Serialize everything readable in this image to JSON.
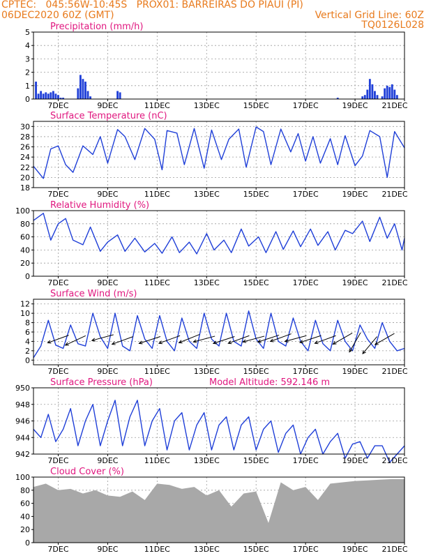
{
  "header": {
    "line1_left": "CPTEC:   045:56W-10:45S   PROX01: BARREIRAS DO PIAUI (PI)",
    "line2_left": "06DEC2020 60Z (GMT)",
    "line2_right": "Vertical Grid Line: 60Z",
    "line3_right": "TQ0126L028"
  },
  "colors": {
    "header": "#e87a1c",
    "title": "#e0177f",
    "series": "#1f3fd8",
    "cloud_fill": "#a8a8a8",
    "grid": "#9a9a9a",
    "axis": "#000000"
  },
  "x_tick_labels": [
    "7DEC",
    "9DEC",
    "11DEC",
    "13DEC",
    "15DEC",
    "17DEC",
    "19DEC",
    "21DEC"
  ],
  "chart_data": [
    {
      "id": "precip",
      "type": "bar",
      "title": "Precipitation (mm/h)",
      "ylim": [
        0,
        5
      ],
      "yticks": [
        0,
        1,
        2,
        3,
        4,
        5
      ],
      "grid": true,
      "x": [
        0.1,
        0.2,
        0.3,
        0.4,
        0.5,
        0.6,
        0.7,
        0.8,
        0.9,
        1.0,
        1.1,
        1.2,
        1.8,
        1.9,
        2.0,
        2.1,
        2.2,
        2.3,
        3.4,
        3.5,
        12.3,
        13.3,
        13.4,
        13.5,
        13.6,
        13.7,
        13.8,
        13.9,
        14.1,
        14.2,
        14.3,
        14.4,
        14.5,
        14.6,
        14.7
      ],
      "values": [
        1.3,
        0.4,
        0.6,
        0.4,
        0.5,
        0.4,
        0.5,
        0.6,
        0.4,
        0.3,
        0.1,
        0.1,
        0.8,
        1.8,
        1.5,
        1.3,
        0.6,
        0.2,
        0.6,
        0.5,
        0.1,
        0.2,
        0.3,
        0.7,
        1.5,
        1.1,
        0.6,
        0.3,
        0.2,
        0.8,
        1.0,
        0.9,
        1.1,
        0.7,
        0.3
      ]
    },
    {
      "id": "temp",
      "type": "line",
      "title": "Surface Temperature (nC)",
      "ylim": [
        18,
        31
      ],
      "yticks": [
        18,
        20,
        22,
        24,
        26,
        28,
        30
      ],
      "grid": true,
      "x": [
        0.0,
        0.4,
        0.7,
        1.0,
        1.3,
        1.6,
        2.0,
        2.4,
        2.7,
        3.0,
        3.4,
        3.7,
        4.1,
        4.5,
        4.9,
        5.2,
        5.4,
        5.8,
        6.1,
        6.5,
        6.9,
        7.2,
        7.6,
        7.9,
        8.3,
        8.6,
        9.0,
        9.3,
        9.6,
        10.0,
        10.4,
        10.7,
        11.0,
        11.3,
        11.6,
        12.0,
        12.3,
        12.6,
        13.0,
        13.3,
        13.6,
        14.0,
        14.3,
        14.6,
        15.0
      ],
      "values": [
        22.2,
        19.8,
        25.6,
        26.2,
        22.5,
        21.0,
        26.2,
        24.5,
        28.0,
        22.8,
        29.4,
        28.0,
        23.5,
        29.6,
        27.5,
        21.5,
        29.2,
        28.7,
        22.5,
        29.6,
        21.8,
        29.3,
        23.5,
        27.5,
        29.5,
        22.0,
        29.9,
        29.0,
        22.5,
        29.5,
        25.0,
        28.6,
        23.2,
        28.0,
        22.8,
        27.6,
        22.5,
        28.2,
        22.3,
        24.2,
        29.2,
        28.0,
        20.0,
        29.0,
        25.8
      ]
    },
    {
      "id": "rh",
      "type": "line",
      "title": "Relative Humidity (%)",
      "ylim": [
        0,
        100
      ],
      "yticks": [
        0,
        20,
        40,
        60,
        80,
        100
      ],
      "grid": true,
      "x": [
        0.0,
        0.4,
        0.7,
        1.0,
        1.3,
        1.6,
        2.0,
        2.3,
        2.7,
        3.0,
        3.4,
        3.7,
        4.1,
        4.5,
        4.9,
        5.2,
        5.6,
        5.9,
        6.3,
        6.6,
        7.0,
        7.3,
        7.7,
        8.0,
        8.4,
        8.7,
        9.1,
        9.4,
        9.8,
        10.1,
        10.5,
        10.8,
        11.2,
        11.5,
        11.9,
        12.2,
        12.6,
        12.9,
        13.3,
        13.6,
        14.0,
        14.3,
        14.6,
        14.9,
        15.0
      ],
      "values": [
        85,
        96,
        55,
        80,
        88,
        55,
        48,
        75,
        38,
        52,
        63,
        38,
        58,
        37,
        50,
        35,
        60,
        36,
        52,
        34,
        65,
        40,
        55,
        36,
        72,
        46,
        60,
        36,
        68,
        41,
        69,
        45,
        72,
        47,
        68,
        40,
        70,
        65,
        84,
        53,
        90,
        58,
        80,
        40,
        58
      ]
    },
    {
      "id": "wind",
      "type": "line",
      "title": "Surface Wind (m/s)",
      "ylim": [
        -1,
        13
      ],
      "yticks": [
        0,
        2,
        4,
        6,
        8,
        10,
        12
      ],
      "grid": true,
      "x": [
        0.0,
        0.3,
        0.6,
        0.9,
        1.2,
        1.5,
        1.8,
        2.1,
        2.4,
        2.7,
        3.0,
        3.3,
        3.6,
        3.9,
        4.2,
        4.5,
        4.8,
        5.1,
        5.4,
        5.7,
        6.0,
        6.3,
        6.6,
        6.9,
        7.2,
        7.5,
        7.8,
        8.1,
        8.4,
        8.7,
        9.0,
        9.3,
        9.6,
        9.9,
        10.2,
        10.5,
        10.8,
        11.1,
        11.4,
        11.7,
        12.0,
        12.3,
        12.6,
        12.9,
        13.2,
        13.5,
        13.8,
        14.1,
        14.4,
        14.7,
        15.0
      ],
      "values": [
        0.5,
        3.0,
        8.5,
        3.2,
        2.5,
        7.5,
        3.5,
        3.0,
        10.0,
        5.0,
        2.5,
        10.0,
        3.0,
        2.0,
        9.5,
        4.5,
        2.5,
        9.5,
        4.0,
        2.0,
        9.0,
        4.0,
        2.5,
        10.0,
        4.5,
        3.0,
        10.0,
        4.0,
        3.0,
        10.5,
        4.5,
        2.5,
        10.0,
        4.0,
        3.0,
        9.0,
        4.0,
        2.0,
        8.5,
        3.5,
        2.0,
        8.5,
        4.0,
        2.0,
        7.5,
        4.5,
        2.5,
        8.0,
        4.0,
        2.0,
        2.5
      ],
      "arrows_x": [
        1.0,
        1.7,
        2.8,
        3.6,
        4.7,
        5.5,
        6.3,
        6.9,
        7.7,
        8.3,
        8.9,
        9.5,
        10.0,
        10.6,
        11.2,
        11.8,
        12.5,
        13.0,
        13.6,
        14.2
      ],
      "arrows_y": [
        4.5,
        4.2,
        4.8,
        4.2,
        4.3,
        4.4,
        4.6,
        4.5,
        4.3,
        4.4,
        4.5,
        4.6,
        4.8,
        4.6,
        4.5,
        4.4,
        4.6,
        3.8,
        3.2,
        4.5
      ],
      "arrows_dir": [
        20,
        25,
        15,
        20,
        18,
        20,
        22,
        15,
        18,
        20,
        15,
        18,
        20,
        15,
        18,
        20,
        30,
        60,
        50,
        30
      ]
    },
    {
      "id": "pres",
      "type": "line",
      "title": "Surface Pressure (hPa)",
      "subtitle": "Model Altitude: 592.146 m",
      "ylim": [
        942,
        950
      ],
      "yticks": [
        942,
        944,
        946,
        948,
        950
      ],
      "grid": true,
      "x": [
        0.0,
        0.3,
        0.6,
        0.9,
        1.2,
        1.5,
        1.8,
        2.1,
        2.4,
        2.7,
        3.0,
        3.3,
        3.6,
        3.9,
        4.2,
        4.5,
        4.8,
        5.1,
        5.4,
        5.7,
        6.0,
        6.3,
        6.6,
        6.9,
        7.2,
        7.5,
        7.8,
        8.1,
        8.4,
        8.7,
        9.0,
        9.3,
        9.6,
        9.9,
        10.2,
        10.5,
        10.8,
        11.1,
        11.4,
        11.7,
        12.0,
        12.3,
        12.6,
        12.9,
        13.2,
        13.5,
        13.8,
        14.1,
        14.4,
        14.7,
        15.0
      ],
      "values": [
        945,
        944,
        946.8,
        943.5,
        945,
        947.5,
        943,
        946,
        948,
        943,
        946,
        948.5,
        943,
        946.5,
        948.5,
        943,
        946,
        947.5,
        942.5,
        946,
        947,
        942.5,
        945.5,
        947,
        942.5,
        945.5,
        946.5,
        942.5,
        945.5,
        946.5,
        942.5,
        945,
        946,
        942.2,
        944.5,
        945.5,
        942,
        944,
        945,
        942,
        943.5,
        944.5,
        941.5,
        943.2,
        943.5,
        941.5,
        943,
        943,
        941,
        942,
        943
      ]
    },
    {
      "id": "cloud",
      "type": "area",
      "title": "Cloud Cover (%)",
      "ylim": [
        0,
        100
      ],
      "yticks": [
        0,
        20,
        40,
        60,
        80,
        100
      ],
      "grid": true,
      "x": [
        0.0,
        0.5,
        1.0,
        1.5,
        2.0,
        2.5,
        3.0,
        3.5,
        4.0,
        4.5,
        5.0,
        5.5,
        6.0,
        6.5,
        7.0,
        7.5,
        8.0,
        8.5,
        9.0,
        9.5,
        10.0,
        10.5,
        11.0,
        11.5,
        12.0,
        12.5,
        13.0,
        13.5,
        14.0,
        14.5,
        15.0
      ],
      "values": [
        85,
        90,
        80,
        82,
        75,
        80,
        72,
        70,
        78,
        65,
        90,
        88,
        82,
        85,
        72,
        80,
        55,
        75,
        78,
        30,
        92,
        80,
        85,
        65,
        90,
        92,
        94,
        95,
        96,
        97,
        97
      ]
    }
  ]
}
